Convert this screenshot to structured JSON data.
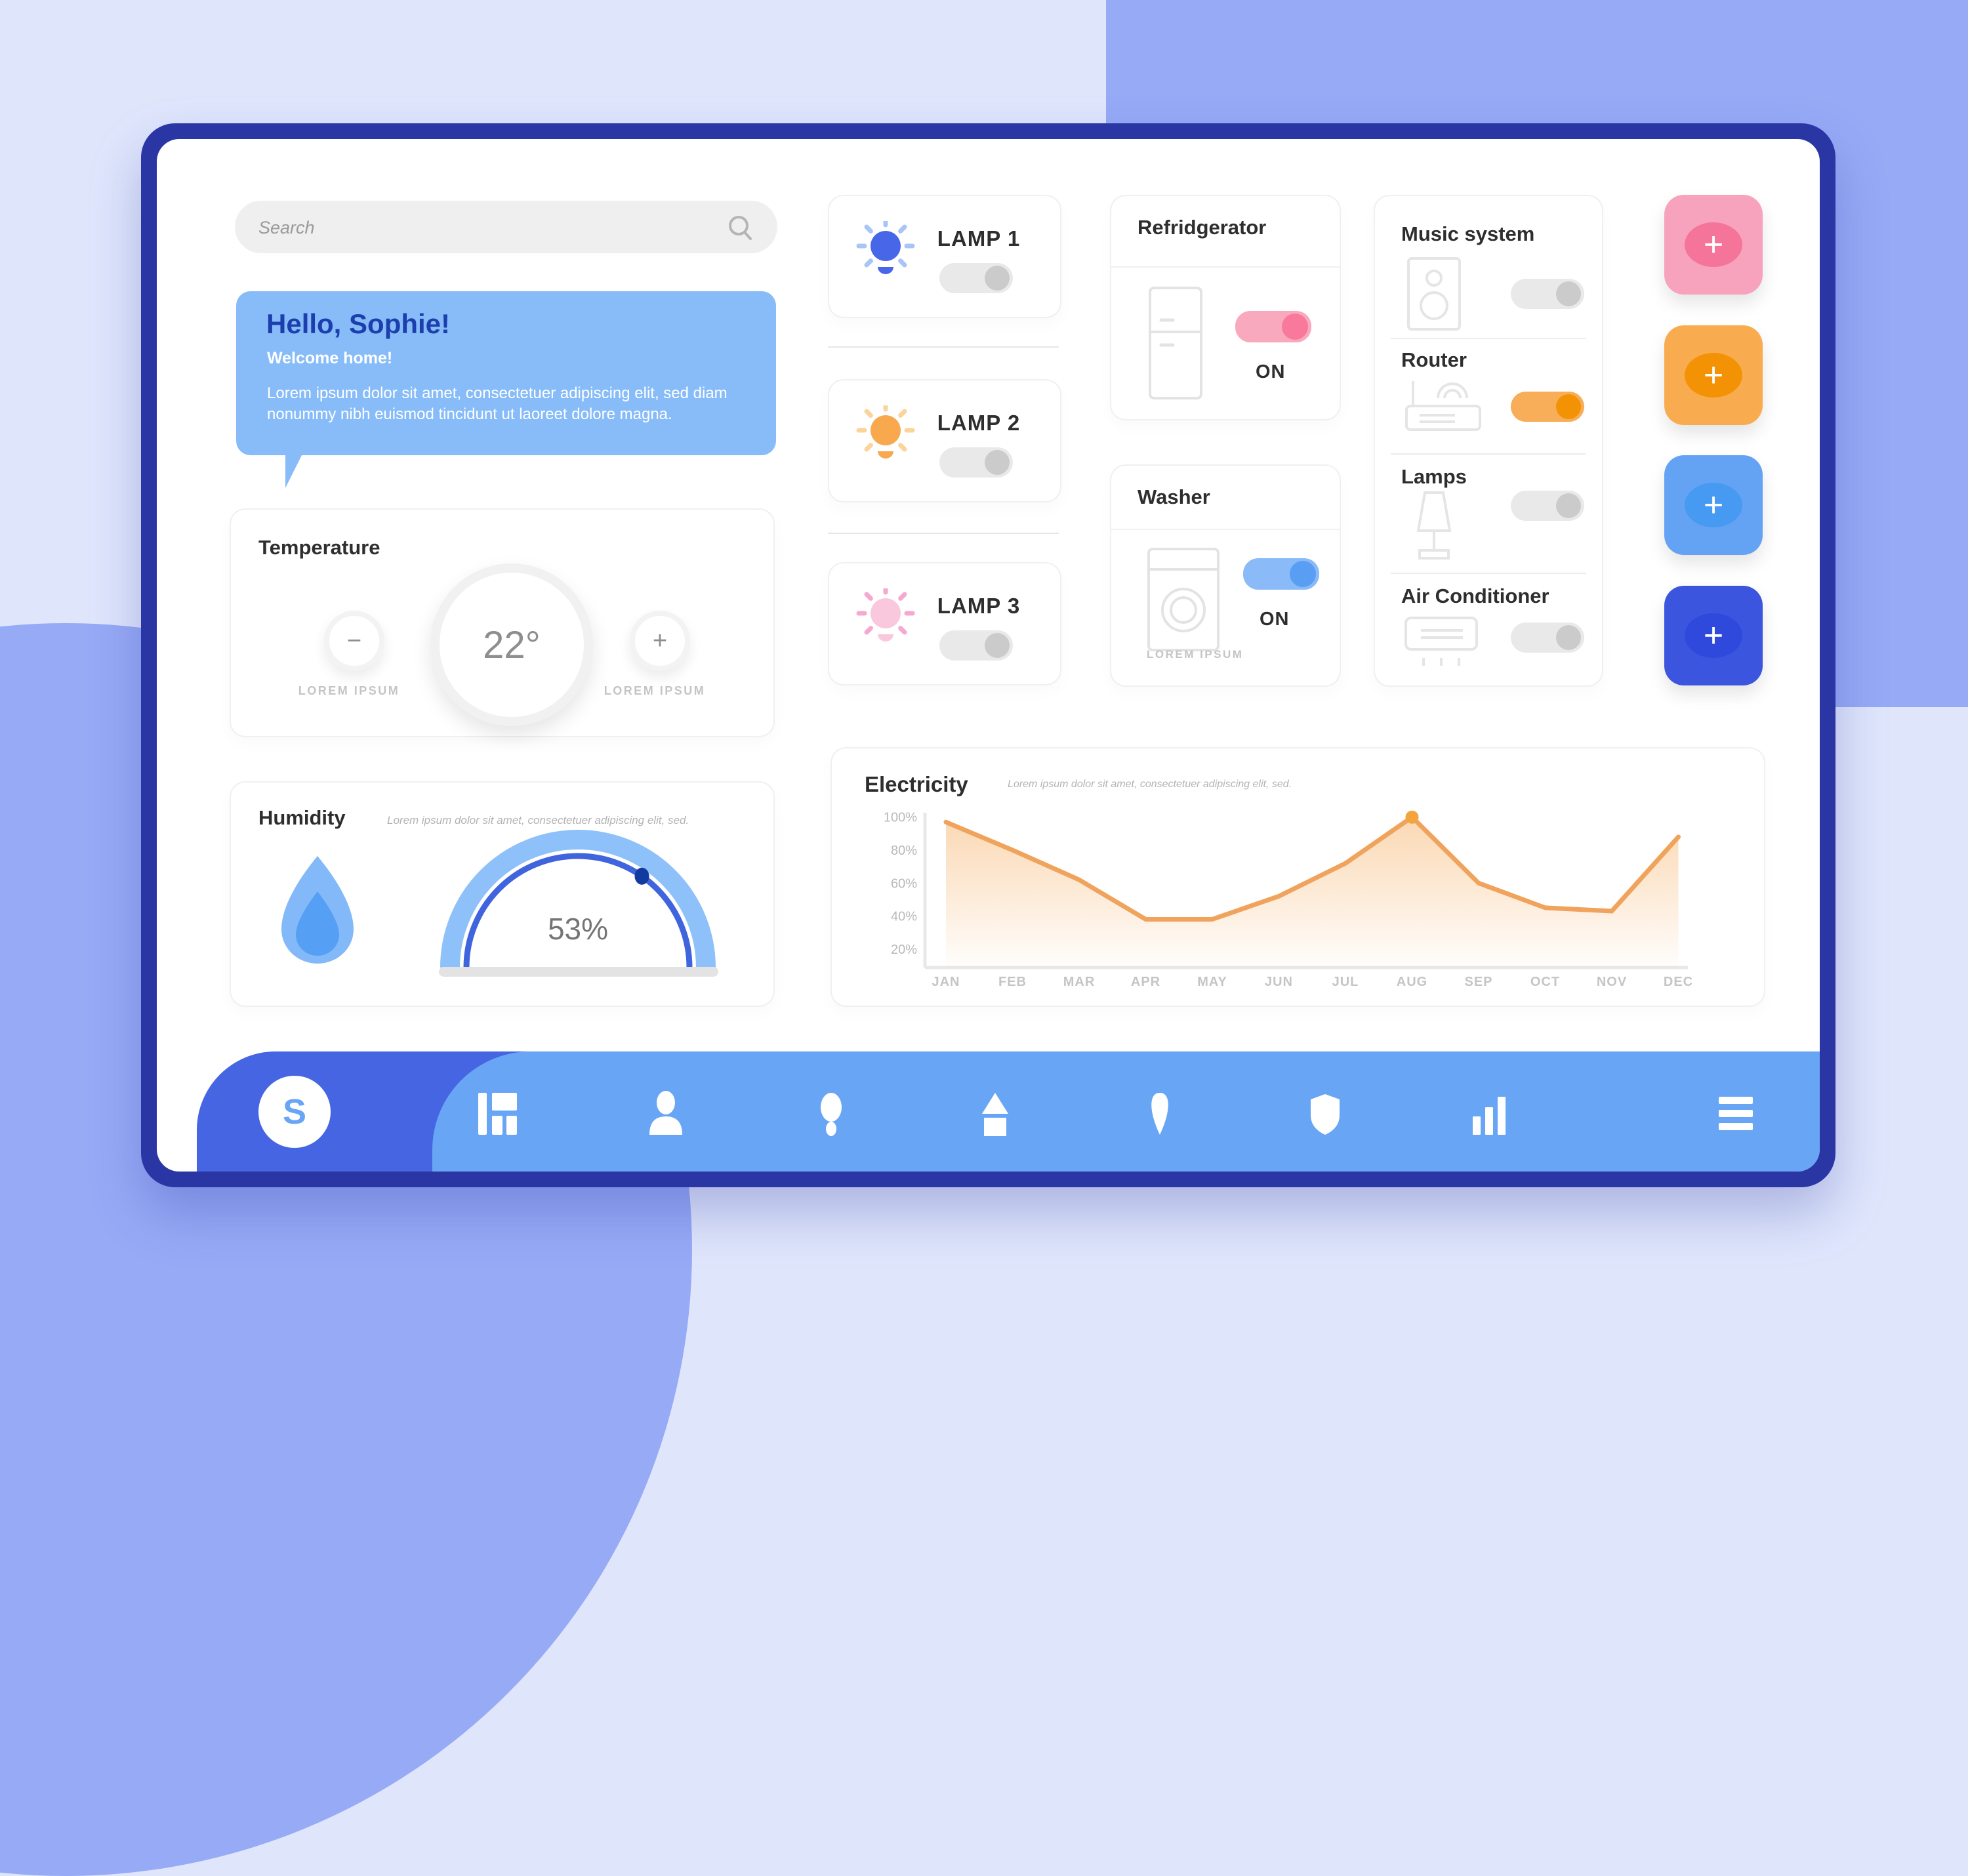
{
  "search": {
    "placeholder": "Search"
  },
  "greeting": {
    "title": "Hello, Sophie!",
    "subtitle": "Welcome home!",
    "body": "Lorem ipsum dolor sit amet, consectetuer adipiscing elit, sed diam nonummy nibh euismod tincidunt ut laoreet dolore magna."
  },
  "temperature": {
    "title": "Temperature",
    "value": "22°",
    "minus": "−",
    "plus": "+",
    "minus_label": "LOREM IPSUM",
    "plus_label": "LOREM IPSUM"
  },
  "humidity": {
    "title": "Humidity",
    "subtitle": "Lorem ipsum dolor sit amet, consectetuer adipiscing elit, sed.",
    "value": "53%",
    "percent": 53,
    "arc_outer_color": "#8ec1f9",
    "arc_inner_color": "#3f64dd",
    "dot_color": "#123a9f",
    "drop_outer_color": "#83b9f8",
    "drop_inner_color": "#55a0f4"
  },
  "lamp_cards": [
    {
      "label": "LAMP 1",
      "bulb_color": "#4767e8",
      "ray_color": "#a9c4f7",
      "track": "#e9e9e9",
      "knob": "#cbcbcb"
    },
    {
      "label": "LAMP 2",
      "bulb_color": "#f8a94e",
      "ray_color": "#fbd49b",
      "track": "#e9e9e9",
      "knob": "#cbcbcb"
    },
    {
      "label": "LAMP 3",
      "bulb_color": "#f9c8dc",
      "ray_color": "#f4a8d2",
      "track": "#e9e9e9",
      "knob": "#cbcbcb"
    }
  ],
  "refrigerator": {
    "title": "Refridgerator",
    "status": "ON",
    "track": "#f9a9bd",
    "knob": "#f8799c"
  },
  "washer": {
    "title": "Washer",
    "status": "ON",
    "footer": "LOREM IPSUM",
    "track": "#8abaf7",
    "knob": "#5a9ef3"
  },
  "devices": [
    {
      "label": "Music system",
      "track": "#e9e9e9",
      "knob": "#cbcbcb"
    },
    {
      "label": "Router",
      "track": "#f8ad58",
      "knob": "#f39204"
    },
    {
      "label": "Lamps",
      "track": "#e9e9e9",
      "knob": "#cbcbcb"
    },
    {
      "label": "Air Conditioner",
      "track": "#e9e9e9",
      "knob": "#cbcbcb"
    }
  ],
  "add_buttons": [
    {
      "bg": "#f8a3bd",
      "circle": "#f5749a",
      "plus": "+"
    },
    {
      "bg": "#f9ac4f",
      "circle": "#f39204",
      "plus": "+"
    },
    {
      "bg": "#64a3f4",
      "circle": "#479af1",
      "plus": "+"
    },
    {
      "bg": "#3b55df",
      "circle": "#2f49dc",
      "plus": "+"
    }
  ],
  "chart_data": {
    "type": "area",
    "title": "Electricity",
    "subtitle": "Lorem ipsum dolor sit amet, consectetuer adipiscing elit, sed.",
    "categories": [
      "JAN",
      "FEB",
      "MAR",
      "APR",
      "MAY",
      "JUN",
      "JUL",
      "AUG",
      "SEP",
      "OCT",
      "NOV",
      "DEC"
    ],
    "values": [
      97,
      80,
      62,
      38,
      38,
      52,
      72,
      100,
      60,
      45,
      43,
      88
    ],
    "ylabel": "",
    "xlabel": "",
    "ylim": [
      0,
      100
    ],
    "ytick_values": [
      100,
      80,
      60,
      40,
      20
    ],
    "ytick_labels": [
      "100%",
      "80%",
      "60%",
      "40%",
      "20%"
    ],
    "grid": false,
    "legend": "none",
    "marker_index": 7,
    "line_color": "#f0a35c",
    "marker_color": "#f4a43c",
    "fill_top_color": "rgba(246,177,103,0.50)",
    "fill_bottom_color": "rgba(246,177,103,0.02)"
  },
  "nav": {
    "logo": "S",
    "icons": [
      "dashboard-columns",
      "user",
      "lightbulb",
      "home-eject",
      "location-pin",
      "shield",
      "stats-bars",
      "menu"
    ]
  }
}
